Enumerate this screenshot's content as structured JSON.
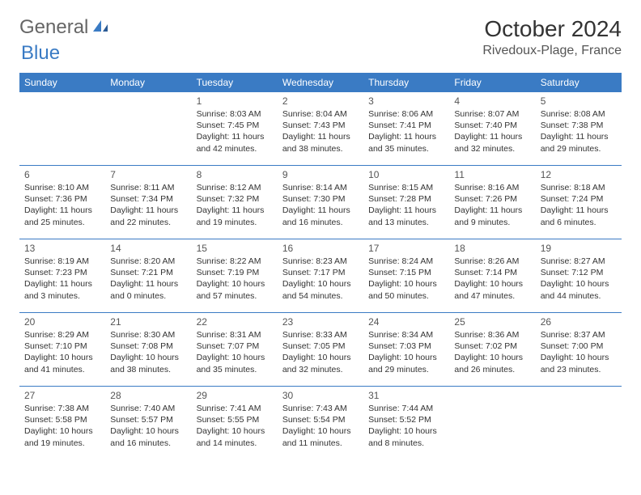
{
  "logo": {
    "text_gray": "General",
    "text_blue": "Blue"
  },
  "title": "October 2024",
  "location": "Rivedoux-Plage, France",
  "colors": {
    "header_bg": "#3a7bc4",
    "header_fg": "#ffffff",
    "rule": "#3a7bc4",
    "text": "#333333",
    "muted": "#555555"
  },
  "day_headers": [
    "Sunday",
    "Monday",
    "Tuesday",
    "Wednesday",
    "Thursday",
    "Friday",
    "Saturday"
  ],
  "weeks": [
    [
      null,
      null,
      {
        "n": "1",
        "sr": "8:03 AM",
        "ss": "7:45 PM",
        "dl": "11 hours and 42 minutes."
      },
      {
        "n": "2",
        "sr": "8:04 AM",
        "ss": "7:43 PM",
        "dl": "11 hours and 38 minutes."
      },
      {
        "n": "3",
        "sr": "8:06 AM",
        "ss": "7:41 PM",
        "dl": "11 hours and 35 minutes."
      },
      {
        "n": "4",
        "sr": "8:07 AM",
        "ss": "7:40 PM",
        "dl": "11 hours and 32 minutes."
      },
      {
        "n": "5",
        "sr": "8:08 AM",
        "ss": "7:38 PM",
        "dl": "11 hours and 29 minutes."
      }
    ],
    [
      {
        "n": "6",
        "sr": "8:10 AM",
        "ss": "7:36 PM",
        "dl": "11 hours and 25 minutes."
      },
      {
        "n": "7",
        "sr": "8:11 AM",
        "ss": "7:34 PM",
        "dl": "11 hours and 22 minutes."
      },
      {
        "n": "8",
        "sr": "8:12 AM",
        "ss": "7:32 PM",
        "dl": "11 hours and 19 minutes."
      },
      {
        "n": "9",
        "sr": "8:14 AM",
        "ss": "7:30 PM",
        "dl": "11 hours and 16 minutes."
      },
      {
        "n": "10",
        "sr": "8:15 AM",
        "ss": "7:28 PM",
        "dl": "11 hours and 13 minutes."
      },
      {
        "n": "11",
        "sr": "8:16 AM",
        "ss": "7:26 PM",
        "dl": "11 hours and 9 minutes."
      },
      {
        "n": "12",
        "sr": "8:18 AM",
        "ss": "7:24 PM",
        "dl": "11 hours and 6 minutes."
      }
    ],
    [
      {
        "n": "13",
        "sr": "8:19 AM",
        "ss": "7:23 PM",
        "dl": "11 hours and 3 minutes."
      },
      {
        "n": "14",
        "sr": "8:20 AM",
        "ss": "7:21 PM",
        "dl": "11 hours and 0 minutes."
      },
      {
        "n": "15",
        "sr": "8:22 AM",
        "ss": "7:19 PM",
        "dl": "10 hours and 57 minutes."
      },
      {
        "n": "16",
        "sr": "8:23 AM",
        "ss": "7:17 PM",
        "dl": "10 hours and 54 minutes."
      },
      {
        "n": "17",
        "sr": "8:24 AM",
        "ss": "7:15 PM",
        "dl": "10 hours and 50 minutes."
      },
      {
        "n": "18",
        "sr": "8:26 AM",
        "ss": "7:14 PM",
        "dl": "10 hours and 47 minutes."
      },
      {
        "n": "19",
        "sr": "8:27 AM",
        "ss": "7:12 PM",
        "dl": "10 hours and 44 minutes."
      }
    ],
    [
      {
        "n": "20",
        "sr": "8:29 AM",
        "ss": "7:10 PM",
        "dl": "10 hours and 41 minutes."
      },
      {
        "n": "21",
        "sr": "8:30 AM",
        "ss": "7:08 PM",
        "dl": "10 hours and 38 minutes."
      },
      {
        "n": "22",
        "sr": "8:31 AM",
        "ss": "7:07 PM",
        "dl": "10 hours and 35 minutes."
      },
      {
        "n": "23",
        "sr": "8:33 AM",
        "ss": "7:05 PM",
        "dl": "10 hours and 32 minutes."
      },
      {
        "n": "24",
        "sr": "8:34 AM",
        "ss": "7:03 PM",
        "dl": "10 hours and 29 minutes."
      },
      {
        "n": "25",
        "sr": "8:36 AM",
        "ss": "7:02 PM",
        "dl": "10 hours and 26 minutes."
      },
      {
        "n": "26",
        "sr": "8:37 AM",
        "ss": "7:00 PM",
        "dl": "10 hours and 23 minutes."
      }
    ],
    [
      {
        "n": "27",
        "sr": "7:38 AM",
        "ss": "5:58 PM",
        "dl": "10 hours and 19 minutes."
      },
      {
        "n": "28",
        "sr": "7:40 AM",
        "ss": "5:57 PM",
        "dl": "10 hours and 16 minutes."
      },
      {
        "n": "29",
        "sr": "7:41 AM",
        "ss": "5:55 PM",
        "dl": "10 hours and 14 minutes."
      },
      {
        "n": "30",
        "sr": "7:43 AM",
        "ss": "5:54 PM",
        "dl": "10 hours and 11 minutes."
      },
      {
        "n": "31",
        "sr": "7:44 AM",
        "ss": "5:52 PM",
        "dl": "10 hours and 8 minutes."
      },
      null,
      null
    ]
  ],
  "labels": {
    "sunrise": "Sunrise:",
    "sunset": "Sunset:",
    "daylight": "Daylight:"
  }
}
